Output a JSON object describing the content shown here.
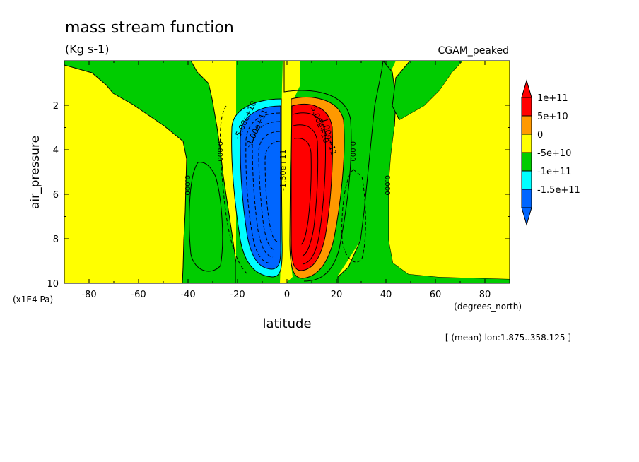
{
  "chart_data": {
    "type": "heatmap",
    "title": "mass stream function",
    "units": "(Kg s-1)",
    "dataset_label": "CGAM_peaked",
    "ylabel": "air_pressure",
    "yunits": "(x1E4 Pa)",
    "xlabel": "latitude",
    "xunits": "(degrees_north)",
    "footnote": "[ (mean) lon:1.875..358.125 ]",
    "xlim": [
      -90,
      90
    ],
    "ylim": [
      10,
      0
    ],
    "x_ticks": [
      -80,
      -60,
      -40,
      -20,
      0,
      20,
      40,
      60,
      80
    ],
    "y_ticks": [
      2,
      4,
      6,
      8,
      10
    ],
    "color_levels": [
      {
        "label": "1e+11",
        "color": "#ff0000"
      },
      {
        "label": "5e+10",
        "color": "#ff9900"
      },
      {
        "label": "0",
        "color": "#ffff00"
      },
      {
        "label": "-5e+10",
        "color": "#00cc00"
      },
      {
        "label": "-1e+11",
        "color": "#00ffff"
      },
      {
        "label": "-1.5e+11",
        "color": "#0066ff"
      }
    ],
    "contour_labels": [
      "5.00e+10",
      "1.00e+11",
      "-5.00e+10",
      "-1.00e+11",
      "-1.50e+11",
      "0.000"
    ]
  }
}
